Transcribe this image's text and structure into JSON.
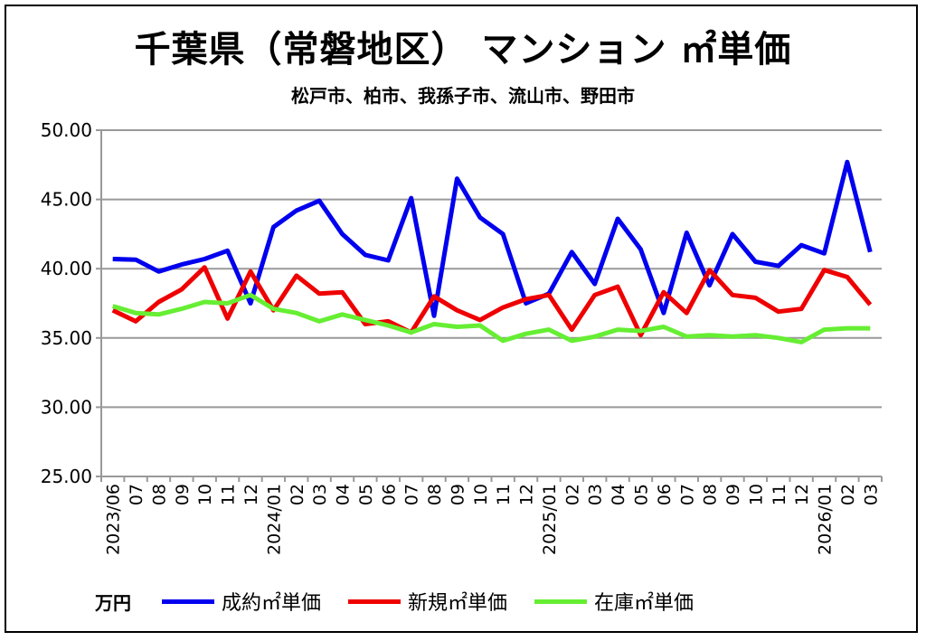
{
  "chart_data": {
    "type": "line",
    "title": "千葉県（常磐地区） マンション ㎡単価",
    "subtitle": "松戸市、柏市、我孫子市、流山市、野田市",
    "ylabel": "万円",
    "ylim": [
      25,
      50
    ],
    "yticks": [
      "50.00",
      "45.00",
      "40.00",
      "35.00",
      "30.00",
      "25.00"
    ],
    "ytick_values": [
      50,
      45,
      40,
      35,
      30,
      25
    ],
    "grid": true,
    "legend_position": "bottom",
    "x": [
      "2023/06",
      "07",
      "08",
      "09",
      "10",
      "11",
      "12",
      "2024/01",
      "02",
      "03",
      "04",
      "05",
      "06",
      "07",
      "08",
      "09",
      "10",
      "11",
      "12",
      "2025/01",
      "02",
      "03",
      "04",
      "05",
      "06",
      "07",
      "08",
      "09",
      "10",
      "11",
      "12",
      "2026/01",
      "02",
      "03"
    ],
    "series": [
      {
        "name": "成約㎡単価",
        "color": "#0000ee",
        "values": [
          40.7,
          40.65,
          39.8,
          40.3,
          40.7,
          41.3,
          37.5,
          43.0,
          44.2,
          44.9,
          42.5,
          41.0,
          40.6,
          45.1,
          36.6,
          46.5,
          43.7,
          42.5,
          37.5,
          38.2,
          41.2,
          38.9,
          43.6,
          41.4,
          36.8,
          42.6,
          38.8,
          42.5,
          40.5,
          40.2,
          41.7,
          41.1,
          47.7,
          41.2
        ]
      },
      {
        "name": "新規㎡単価",
        "color": "#ee0000",
        "values": [
          37.0,
          36.2,
          37.6,
          38.5,
          40.1,
          36.4,
          39.8,
          37.0,
          39.5,
          38.2,
          38.3,
          36.0,
          36.2,
          35.4,
          38.0,
          37.0,
          36.3,
          37.2,
          37.8,
          38.1,
          35.6,
          38.1,
          38.7,
          35.2,
          38.3,
          36.8,
          39.9,
          38.1,
          37.9,
          36.9,
          37.1,
          39.9,
          39.4,
          37.4
        ]
      },
      {
        "name": "在庫㎡単価",
        "color": "#66ee33",
        "values": [
          37.3,
          36.8,
          36.7,
          37.1,
          37.6,
          37.5,
          38.1,
          37.1,
          36.8,
          36.2,
          36.7,
          36.3,
          35.9,
          35.4,
          36.0,
          35.8,
          35.9,
          34.8,
          35.3,
          35.6,
          34.8,
          35.1,
          35.6,
          35.5,
          35.8,
          35.1,
          35.2,
          35.1,
          35.2,
          35.0,
          34.7,
          35.6,
          35.7,
          35.7
        ]
      }
    ]
  }
}
